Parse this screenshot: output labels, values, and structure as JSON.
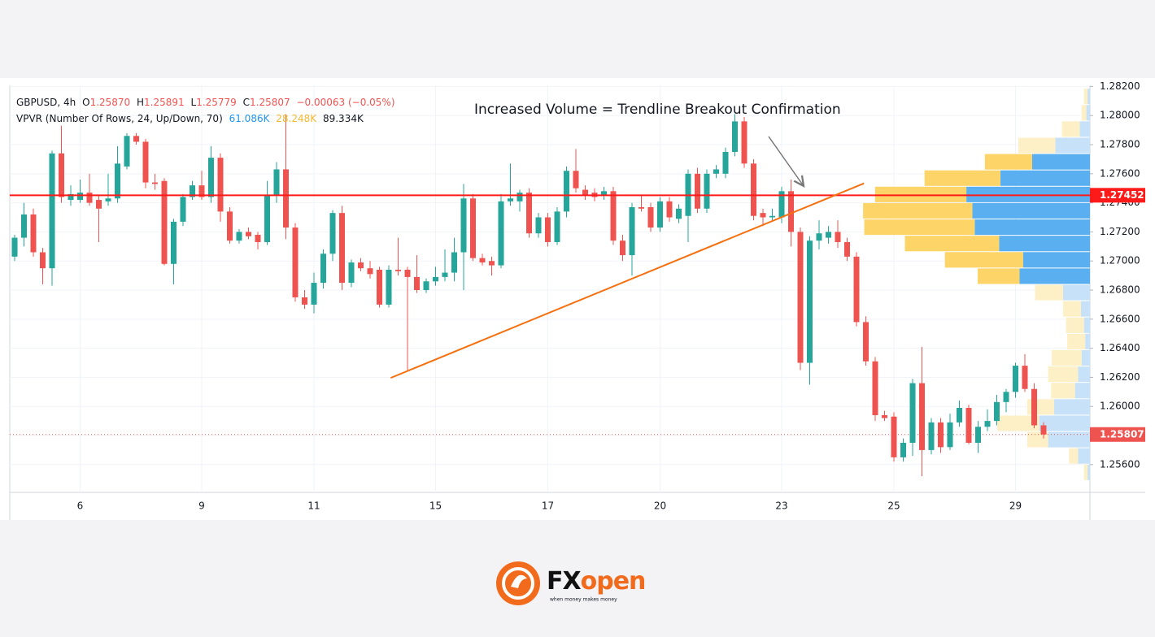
{
  "chart_data": {
    "type": "candlestick",
    "header": {
      "symbol": "GBPUSD, 4h",
      "o": "O",
      "open": "1.25870",
      "h": "H",
      "high": "1.25891",
      "l": "L",
      "low": "1.25779",
      "c": "C",
      "close": "1.25807",
      "change": "−0.00063 (−0.05%)"
    },
    "indicator": {
      "name": "VPVR (Number Of Rows, 24, Up/Down, 70)",
      "up": "61.086K",
      "down": "28.248K",
      "total": "89.334K"
    },
    "annotation": "Increased Volume = Trendline Breakout Confirmation",
    "categories": [
      null,
      null,
      null,
      null,
      null,
      null,
      null,
      "6",
      null,
      null,
      null,
      null,
      null,
      null,
      null,
      null,
      null,
      null,
      null,
      null,
      "9",
      null,
      null,
      null,
      null,
      null,
      null,
      null,
      null,
      null,
      null,
      null,
      "11",
      null,
      null,
      null,
      null,
      null,
      null,
      null,
      null,
      null,
      null,
      null,
      null,
      "15",
      null,
      null,
      null,
      null,
      null,
      null,
      null,
      null,
      null,
      null,
      null,
      "17",
      null,
      null,
      null,
      null,
      null,
      null,
      null,
      null,
      null,
      null,
      null,
      "20",
      null,
      null,
      null,
      null,
      null,
      null,
      null,
      null,
      null,
      null,
      null,
      null,
      "23",
      null,
      null,
      null,
      null,
      null,
      null,
      null,
      null,
      null,
      null,
      null,
      "25",
      null,
      null,
      null,
      null,
      null,
      null,
      null,
      null,
      null,
      null,
      null,
      null,
      "29",
      null,
      null,
      null
    ],
    "ohlc": [
      [
        1.2703,
        1.2718,
        1.27,
        1.2716
      ],
      [
        1.2716,
        1.274,
        1.271,
        1.2732
      ],
      [
        1.2732,
        1.2736,
        1.2703,
        1.2706
      ],
      [
        1.2706,
        1.2709,
        1.2684,
        1.2695
      ],
      [
        1.2695,
        1.2776,
        1.2683,
        1.2774
      ],
      [
        1.2774,
        1.2793,
        1.274,
        1.2744
      ],
      [
        1.2742,
        1.2752,
        1.2738,
        1.2746
      ],
      [
        1.2742,
        1.2756,
        1.274,
        1.2747
      ],
      [
        1.2747,
        1.276,
        1.2738,
        1.274
      ],
      [
        1.2742,
        1.2745,
        1.2713,
        1.2736
      ],
      [
        1.2741,
        1.276,
        1.2738,
        1.2743
      ],
      [
        1.2743,
        1.2779,
        1.274,
        1.2767
      ],
      [
        1.2765,
        1.2788,
        1.2763,
        1.2786
      ],
      [
        1.2786,
        1.2788,
        1.278,
        1.2782
      ],
      [
        1.2782,
        1.2784,
        1.275,
        1.2754
      ],
      [
        1.2754,
        1.276,
        1.2749,
        1.2753
      ],
      [
        1.2755,
        1.2757,
        1.2697,
        1.2698
      ],
      [
        1.2698,
        1.2729,
        1.2684,
        1.2727
      ],
      [
        1.2727,
        1.2746,
        1.2724,
        1.2744
      ],
      [
        1.2744,
        1.2755,
        1.2742,
        1.2752
      ],
      [
        1.2752,
        1.2762,
        1.2742,
        1.2744
      ],
      [
        1.2744,
        1.2779,
        1.274,
        1.2771
      ],
      [
        1.2771,
        1.2774,
        1.2727,
        1.2734
      ],
      [
        1.2734,
        1.2737,
        1.2712,
        1.2714
      ],
      [
        1.2714,
        1.2722,
        1.2712,
        1.272
      ],
      [
        1.272,
        1.2723,
        1.2715,
        1.2717
      ],
      [
        1.2718,
        1.272,
        1.2708,
        1.2713
      ],
      [
        1.2713,
        1.2755,
        1.2711,
        1.2745
      ],
      [
        1.2745,
        1.2768,
        1.274,
        1.2763
      ],
      [
        1.2763,
        1.2801,
        1.2715,
        1.2723
      ],
      [
        1.2723,
        1.2726,
        1.2672,
        1.2675
      ],
      [
        1.2675,
        1.268,
        1.2667,
        1.267
      ],
      [
        1.267,
        1.2692,
        1.2664,
        1.2685
      ],
      [
        1.2685,
        1.2708,
        1.2681,
        1.2705
      ],
      [
        1.2705,
        1.2735,
        1.27,
        1.2733
      ],
      [
        1.2733,
        1.2738,
        1.268,
        1.2685
      ],
      [
        1.2685,
        1.2701,
        1.2682,
        1.2699
      ],
      [
        1.2699,
        1.2702,
        1.2693,
        1.2695
      ],
      [
        1.2695,
        1.27,
        1.2688,
        1.2691
      ],
      [
        1.2694,
        1.2696,
        1.2668,
        1.267
      ],
      [
        1.267,
        1.2697,
        1.2668,
        1.2694
      ],
      [
        1.2694,
        1.2716,
        1.269,
        1.2693
      ],
      [
        1.2694,
        1.2696,
        1.2625,
        1.2689
      ],
      [
        1.2689,
        1.2704,
        1.2678,
        1.268
      ],
      [
        1.268,
        1.2688,
        1.2678,
        1.2686
      ],
      [
        1.2686,
        1.2696,
        1.2683,
        1.2689
      ],
      [
        1.2689,
        1.2708,
        1.2686,
        1.2692
      ],
      [
        1.2692,
        1.2716,
        1.2686,
        1.2706
      ],
      [
        1.2706,
        1.2753,
        1.268,
        1.2743
      ],
      [
        1.2743,
        1.2746,
        1.27,
        1.2702
      ],
      [
        1.2702,
        1.2705,
        1.2697,
        1.2699
      ],
      [
        1.27,
        1.2703,
        1.269,
        1.2697
      ],
      [
        1.2697,
        1.2746,
        1.2695,
        1.2741
      ],
      [
        1.2741,
        1.2767,
        1.2738,
        1.2743
      ],
      [
        1.2741,
        1.2749,
        1.2734,
        1.2747
      ],
      [
        1.2747,
        1.275,
        1.2716,
        1.2719
      ],
      [
        1.2719,
        1.2733,
        1.2716,
        1.273
      ],
      [
        1.273,
        1.2733,
        1.271,
        1.2713
      ],
      [
        1.2713,
        1.2737,
        1.2711,
        1.2734
      ],
      [
        1.2734,
        1.2765,
        1.273,
        1.2762
      ],
      [
        1.2762,
        1.2777,
        1.2747,
        1.275
      ],
      [
        1.2749,
        1.2752,
        1.2742,
        1.2745
      ],
      [
        1.2747,
        1.275,
        1.2741,
        1.2744
      ],
      [
        1.2745,
        1.2751,
        1.2742,
        1.2748
      ],
      [
        1.2748,
        1.2751,
        1.2711,
        1.2714
      ],
      [
        1.2714,
        1.2718,
        1.27,
        1.2704
      ],
      [
        1.2704,
        1.274,
        1.269,
        1.2737
      ],
      [
        1.2737,
        1.2745,
        1.2734,
        1.2736
      ],
      [
        1.2737,
        1.274,
        1.272,
        1.2723
      ],
      [
        1.2723,
        1.2744,
        1.272,
        1.2741
      ],
      [
        1.2741,
        1.2744,
        1.2727,
        1.273
      ],
      [
        1.2729,
        1.2739,
        1.2726,
        1.2736
      ],
      [
        1.2731,
        1.2763,
        1.2713,
        1.276
      ],
      [
        1.276,
        1.2764,
        1.2733,
        1.2736
      ],
      [
        1.2736,
        1.2763,
        1.2733,
        1.276
      ],
      [
        1.276,
        1.2766,
        1.2757,
        1.2763
      ],
      [
        1.276,
        1.2778,
        1.2757,
        1.2775
      ],
      [
        1.2775,
        1.2801,
        1.2772,
        1.2796
      ],
      [
        1.2796,
        1.2799,
        1.2764,
        1.2767
      ],
      [
        1.2767,
        1.277,
        1.2728,
        1.2731
      ],
      [
        1.2733,
        1.2736,
        1.2724,
        1.273
      ],
      [
        1.273,
        1.2736,
        1.2727,
        1.2731
      ],
      [
        1.273,
        1.2751,
        1.2726,
        1.2748
      ],
      [
        1.2748,
        1.2756,
        1.271,
        1.272
      ],
      [
        1.272,
        1.2723,
        1.2625,
        1.263
      ],
      [
        1.263,
        1.2717,
        1.2615,
        1.2714
      ],
      [
        1.2714,
        1.2728,
        1.2708,
        1.2719
      ],
      [
        1.2716,
        1.2724,
        1.2712,
        1.272
      ],
      [
        1.272,
        1.2728,
        1.2709,
        1.2713
      ],
      [
        1.2713,
        1.2716,
        1.27,
        1.2703
      ],
      [
        1.2703,
        1.2706,
        1.2655,
        1.2658
      ],
      [
        1.2658,
        1.2662,
        1.2628,
        1.2631
      ],
      [
        1.2631,
        1.2634,
        1.259,
        1.2594
      ],
      [
        1.2594,
        1.2597,
        1.259,
        1.2592
      ],
      [
        1.2593,
        1.2596,
        1.2562,
        1.2565
      ],
      [
        1.2565,
        1.2578,
        1.2562,
        1.2575
      ],
      [
        1.2575,
        1.2619,
        1.2566,
        1.2616
      ],
      [
        1.2616,
        1.2641,
        1.2552,
        1.257
      ],
      [
        1.257,
        1.2592,
        1.2567,
        1.2589
      ],
      [
        1.2589,
        1.2592,
        1.2568,
        1.2572
      ],
      [
        1.2572,
        1.2595,
        1.257,
        1.2589
      ],
      [
        1.2589,
        1.2604,
        1.2586,
        1.2599
      ],
      [
        1.2599,
        1.2601,
        1.2574,
        1.2575
      ],
      [
        1.2575,
        1.259,
        1.2568,
        1.2586
      ],
      [
        1.2586,
        1.2598,
        1.2583,
        1.259
      ],
      [
        1.259,
        1.2608,
        1.2587,
        1.2603
      ],
      [
        1.2603,
        1.2612,
        1.2596,
        1.261
      ],
      [
        1.261,
        1.263,
        1.2606,
        1.2628
      ],
      [
        1.2628,
        1.2636,
        1.261,
        1.2612
      ],
      [
        1.2612,
        1.2616,
        1.2585,
        1.2587
      ],
      [
        1.2587,
        1.25891,
        1.25779,
        1.25807
      ]
    ],
    "up_color": "#26a69a",
    "down_color": "#ef5350",
    "ylim": [
      1.25409,
      1.28208
    ],
    "yticks": [
      {
        "value": 1.256,
        "label": "1.25600"
      },
      {
        "value": 1.258,
        "label": "1.25800"
      },
      {
        "value": 1.26,
        "label": "1.26000"
      },
      {
        "value": 1.262,
        "label": "1.26200"
      },
      {
        "value": 1.264,
        "label": "1.26400"
      },
      {
        "value": 1.266,
        "label": "1.26600"
      },
      {
        "value": 1.268,
        "label": "1.26800"
      },
      {
        "value": 1.27,
        "label": "1.27000"
      },
      {
        "value": 1.272,
        "label": "1.27200"
      },
      {
        "value": 1.274,
        "label": "1.27400"
      },
      {
        "value": 1.276,
        "label": "1.27600"
      },
      {
        "value": 1.278,
        "label": "1.27800"
      },
      {
        "value": 1.28,
        "label": "1.28000"
      },
      {
        "value": 1.282,
        "label": "1.28200"
      }
    ],
    "grid": true,
    "hline": {
      "value": 1.27452,
      "color": "#ff1a1a"
    },
    "last_price": 1.25807,
    "trendline": {
      "start": [
        40.2,
        1.26196
      ],
      "end": [
        90.8,
        1.27534
      ],
      "color": "#f5700f"
    },
    "volume_profile": {
      "range": [
        1.25488,
        1.28185
      ],
      "up": [
        4,
        6,
        17,
        58,
        97,
        150,
        207,
        197,
        193,
        152,
        112,
        118,
        45,
        15,
        10,
        8,
        14,
        20,
        25,
        60,
        85,
        70,
        20,
        4
      ],
      "down": [
        6,
        8,
        30,
        62,
        79,
        127,
        153,
        183,
        185,
        158,
        131,
        70,
        47,
        30,
        30,
        30,
        50,
        50,
        40,
        45,
        70,
        35,
        15,
        6
      ],
      "value_area": [
        4,
        11
      ],
      "up_color": "#5aaff0",
      "down_color": "#fdd468",
      "up_faded": "#c7e2f8",
      "down_faded": "#fdefc6"
    },
    "brand": {
      "fx": "FX",
      "open": "open",
      "tagline": "when money makes money"
    }
  }
}
